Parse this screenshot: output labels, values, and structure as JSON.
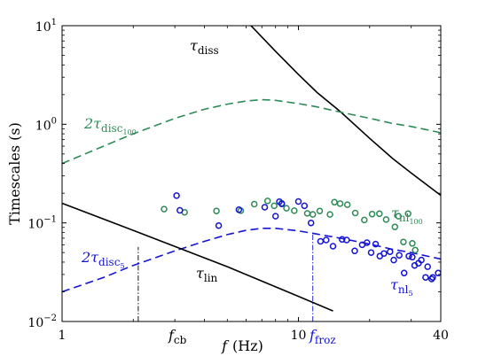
{
  "chart_data": {
    "type": "scatter",
    "xlabel_symbol": "f",
    "xlabel_unit": "(Hz)",
    "ylabel": "Timescales (s)",
    "xscale": "log",
    "yscale": "log",
    "xlim": [
      1,
      40
    ],
    "ylim": [
      0.01,
      10
    ],
    "x_ticks": [
      {
        "value": 1,
        "label": "1"
      },
      {
        "value": 10,
        "label": "10"
      },
      {
        "value": 40,
        "label": "40"
      }
    ],
    "y_ticks": [
      {
        "value": 0.01,
        "base": "10",
        "exp": "−2"
      },
      {
        "value": 0.1,
        "base": "10",
        "exp": "−1"
      },
      {
        "value": 1,
        "base": "10",
        "exp": "0"
      },
      {
        "value": 10,
        "base": "10",
        "exp": "1"
      }
    ],
    "colors": {
      "black": "#000000",
      "green": "#2e8b57",
      "blue": "#1414d2"
    },
    "lines": [
      {
        "key": "tau_diss",
        "color": "black",
        "dashed": false,
        "x": [
          6.3,
          8,
          10,
          12,
          15,
          20,
          25,
          30,
          40
        ],
        "y": [
          10,
          5.5,
          3.2,
          2.1,
          1.35,
          0.72,
          0.45,
          0.32,
          0.19
        ]
      },
      {
        "key": "tau_disc100",
        "color": "green",
        "dashed": true,
        "x": [
          1,
          1.5,
          2,
          3,
          4,
          5,
          6,
          7,
          8,
          10,
          12,
          15,
          20,
          25,
          30,
          40
        ],
        "y": [
          0.4,
          0.6,
          0.8,
          1.15,
          1.42,
          1.6,
          1.72,
          1.78,
          1.75,
          1.62,
          1.5,
          1.33,
          1.15,
          1.02,
          0.95,
          0.82
        ]
      },
      {
        "key": "tau_disc5",
        "color": "blue",
        "dashed": true,
        "x": [
          1,
          1.5,
          2,
          3,
          4,
          5,
          6,
          7,
          8,
          10,
          12,
          15,
          20,
          25,
          30,
          40
        ],
        "y": [
          0.02,
          0.028,
          0.037,
          0.052,
          0.065,
          0.076,
          0.084,
          0.088,
          0.088,
          0.083,
          0.077,
          0.07,
          0.061,
          0.054,
          0.05,
          0.043
        ]
      },
      {
        "key": "tau_lin",
        "color": "black",
        "dashed": false,
        "x": [
          1,
          2,
          5,
          10,
          14
        ],
        "y": [
          0.158,
          0.084,
          0.036,
          0.018,
          0.0128
        ]
      }
    ],
    "vlines": [
      {
        "x": 2.1,
        "y_top": 0.057
      },
      {
        "x": 11.5,
        "y_top": 0.08
      }
    ],
    "series": [
      {
        "key": "tau_nl100",
        "color": "green",
        "points": [
          [
            2.7,
            0.138
          ],
          [
            3.3,
            0.128
          ],
          [
            4.5,
            0.132
          ],
          [
            5.7,
            0.133
          ],
          [
            6.5,
            0.155
          ],
          [
            7.4,
            0.167
          ],
          [
            7.9,
            0.149
          ],
          [
            8.5,
            0.158
          ],
          [
            8.9,
            0.141
          ],
          [
            9.6,
            0.133
          ],
          [
            10.9,
            0.125
          ],
          [
            11.5,
            0.122
          ],
          [
            12.3,
            0.132
          ],
          [
            13.6,
            0.122
          ],
          [
            14.2,
            0.162
          ],
          [
            15,
            0.157
          ],
          [
            16.1,
            0.153
          ],
          [
            17.4,
            0.126
          ],
          [
            19,
            0.107
          ],
          [
            20.5,
            0.123
          ],
          [
            22,
            0.124
          ],
          [
            23.5,
            0.108
          ],
          [
            25.6,
            0.091
          ],
          [
            26.5,
            0.117
          ],
          [
            27.8,
            0.064
          ],
          [
            29.1,
            0.124
          ],
          [
            30.3,
            0.062
          ],
          [
            31.2,
            0.053
          ]
        ]
      },
      {
        "key": "tau_nl5",
        "color": "blue",
        "points": [
          [
            3.05,
            0.189
          ],
          [
            3.15,
            0.134
          ],
          [
            4.6,
            0.094
          ],
          [
            5.6,
            0.136
          ],
          [
            7.2,
            0.144
          ],
          [
            8.0,
            0.117
          ],
          [
            8.3,
            0.164
          ],
          [
            8.5,
            0.156
          ],
          [
            10.0,
            0.165
          ],
          [
            10.6,
            0.149
          ],
          [
            11.3,
            0.1
          ],
          [
            12.4,
            0.065
          ],
          [
            13.1,
            0.067
          ],
          [
            14.0,
            0.058
          ],
          [
            15.3,
            0.068
          ],
          [
            16.0,
            0.067
          ],
          [
            17.3,
            0.052
          ],
          [
            18.6,
            0.06
          ],
          [
            19.5,
            0.063
          ],
          [
            20.3,
            0.05
          ],
          [
            21.2,
            0.061
          ],
          [
            22.1,
            0.046
          ],
          [
            23.0,
            0.049
          ],
          [
            24.4,
            0.051
          ],
          [
            25.3,
            0.042
          ],
          [
            26.7,
            0.047
          ],
          [
            28.0,
            0.031
          ],
          [
            29.3,
            0.046
          ],
          [
            30.3,
            0.045
          ],
          [
            31.0,
            0.037
          ],
          [
            32.2,
            0.039
          ],
          [
            33.1,
            0.042
          ],
          [
            34.5,
            0.028
          ],
          [
            35.2,
            0.036
          ],
          [
            36.6,
            0.027
          ],
          [
            37.0,
            0.028
          ],
          [
            39.0,
            0.031
          ]
        ]
      }
    ],
    "annotations": {
      "tau_diss": {
        "sym": "τ",
        "sub": "diss",
        "color": "black"
      },
      "tau_disc100": {
        "prefix": "2τ",
        "sub": "disc",
        "subsub": "100",
        "color": "green"
      },
      "tau_disc5": {
        "prefix": "2τ",
        "sub": "disc",
        "subsub": "5",
        "color": "blue"
      },
      "tau_lin": {
        "sym": "τ",
        "sub": "lin",
        "color": "black"
      },
      "tau_nl100": {
        "sym": "τ",
        "sub": "nl",
        "subsub": "100",
        "color": "green"
      },
      "tau_nl5": {
        "sym": "τ",
        "sub": "nl",
        "subsub": "5",
        "color": "blue"
      },
      "f_cb": {
        "sym": "f",
        "sub": "cb",
        "color": "black"
      },
      "f_froz": {
        "sym": "f",
        "sub": "froz",
        "color": "blue"
      }
    }
  }
}
